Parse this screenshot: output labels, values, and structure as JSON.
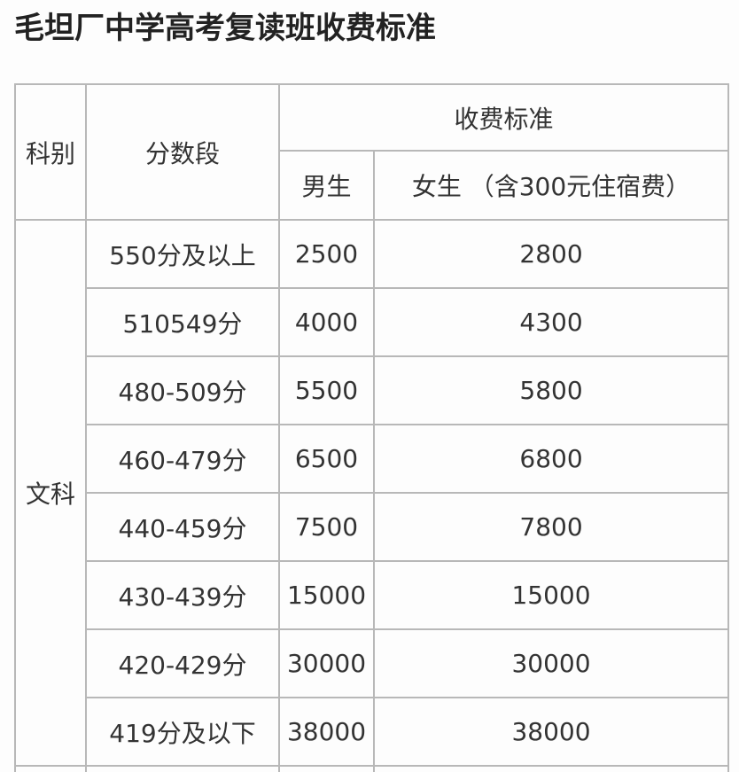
{
  "title": "毛坦厂中学高考复读班收费标准",
  "table": {
    "headers": {
      "subject": "科别",
      "score_range": "分数段",
      "fee_standard": "收费标准",
      "male": "男生",
      "female": "女生 （含300元住宿费）"
    },
    "subject": "文科",
    "rows": [
      {
        "range": "550分及以上",
        "male": "2500",
        "female": "2800"
      },
      {
        "range": "510549分",
        "male": "4000",
        "female": "4300"
      },
      {
        "range": "480-509分",
        "male": "5500",
        "female": "5800"
      },
      {
        "range": "460-479分",
        "male": "6500",
        "female": "6800"
      },
      {
        "range": "440-459分",
        "male": "7500",
        "female": "7800"
      },
      {
        "range": "430-439分",
        "male": "15000",
        "female": "15000"
      },
      {
        "range": "420-429分",
        "male": "30000",
        "female": "30000"
      },
      {
        "range": "419分及以下",
        "male": "38000",
        "female": "38000"
      }
    ]
  }
}
